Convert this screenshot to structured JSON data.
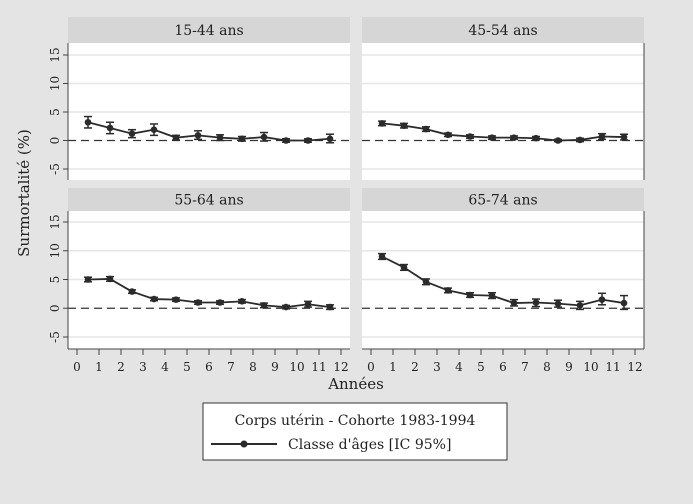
{
  "chart_data": {
    "type": "line",
    "ylabel": "Surmortalité (%)",
    "xlabel": "Années",
    "xlim": [
      0,
      12
    ],
    "ylim": [
      -5,
      15
    ],
    "xticks": [
      0,
      1,
      2,
      3,
      4,
      5,
      6,
      7,
      8,
      9,
      10,
      11,
      12
    ],
    "yticks": [
      -5,
      0,
      5,
      10,
      15
    ],
    "reference_line": 0,
    "grid": true,
    "legend": {
      "title": "Corps utérin - Cohorte 1983-1994",
      "entry": "Classe d'âges [IC 95%]",
      "placement": "bottom"
    },
    "x": [
      0.5,
      1.5,
      2.5,
      3.5,
      4.5,
      5.5,
      6.5,
      7.5,
      8.5,
      9.5,
      10.5,
      11.5
    ],
    "panels": [
      {
        "title": "15-44 ans",
        "values": [
          3.2,
          2.2,
          1.2,
          1.9,
          0.5,
          0.9,
          0.5,
          0.3,
          0.6,
          0.0,
          0.0,
          0.3
        ],
        "lower": [
          2.2,
          1.2,
          0.5,
          0.9,
          0.1,
          0.2,
          0.0,
          -0.1,
          -0.1,
          -0.3,
          -0.3,
          -0.4
        ],
        "upper": [
          4.2,
          3.2,
          1.9,
          2.9,
          0.9,
          1.7,
          1.0,
          0.7,
          1.4,
          0.3,
          0.3,
          1.1
        ]
      },
      {
        "title": "45-54 ans",
        "values": [
          3.0,
          2.6,
          2.0,
          1.0,
          0.7,
          0.5,
          0.5,
          0.4,
          0.0,
          0.1,
          0.7,
          0.6
        ],
        "lower": [
          2.6,
          2.2,
          1.6,
          0.7,
          0.4,
          0.2,
          0.2,
          0.1,
          -0.2,
          -0.2,
          0.2,
          0.1
        ],
        "upper": [
          3.4,
          3.0,
          2.4,
          1.3,
          1.0,
          0.8,
          0.8,
          0.7,
          0.2,
          0.4,
          1.2,
          1.1
        ]
      },
      {
        "title": "55-64 ans",
        "values": [
          5.0,
          5.1,
          2.9,
          1.6,
          1.5,
          1.0,
          1.0,
          1.2,
          0.5,
          0.2,
          0.7,
          0.2
        ],
        "lower": [
          4.6,
          4.7,
          2.6,
          1.3,
          1.2,
          0.7,
          0.7,
          0.9,
          0.1,
          -0.1,
          0.2,
          -0.2
        ],
        "upper": [
          5.4,
          5.5,
          3.2,
          1.9,
          1.8,
          1.3,
          1.3,
          1.5,
          0.9,
          0.5,
          1.2,
          0.6
        ]
      },
      {
        "title": "65-74 ans",
        "values": [
          9.0,
          7.1,
          4.6,
          3.1,
          2.3,
          2.2,
          0.9,
          1.0,
          0.8,
          0.5,
          1.5,
          0.9
        ],
        "lower": [
          8.5,
          6.6,
          4.1,
          2.7,
          1.9,
          1.7,
          0.4,
          0.3,
          0.2,
          -0.2,
          0.6,
          -0.2
        ],
        "upper": [
          9.5,
          7.6,
          5.1,
          3.5,
          2.7,
          2.7,
          1.5,
          1.6,
          1.4,
          1.2,
          2.6,
          2.2
        ]
      }
    ],
    "colors": {
      "line": "#2b2b2b",
      "background": "#e4e4e4",
      "header": "#d6d6d6",
      "grid": "#e6e6e6"
    }
  }
}
